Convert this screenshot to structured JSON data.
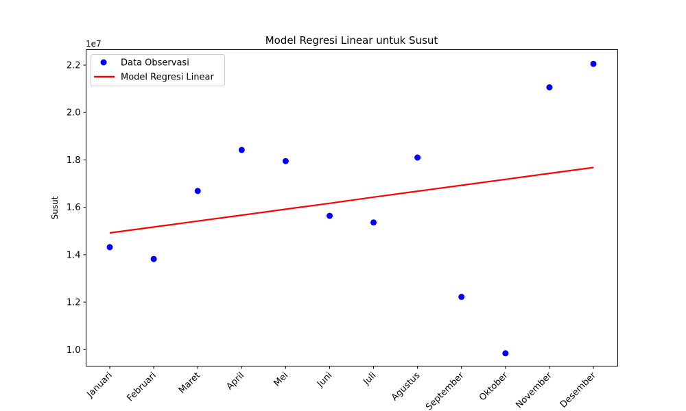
{
  "chart_data": {
    "type": "scatter",
    "title": "Model Regresi Linear untuk Susut",
    "xlabel": "",
    "ylabel": "Susut",
    "y_offset_label": "1e7",
    "categories": [
      "Januari",
      "Februari",
      "Maret",
      "April",
      "Mei",
      "Juni",
      "Juli",
      "Agustus",
      "September",
      "Oktober",
      "November",
      "Desember"
    ],
    "ylim": [
      9.3,
      22.65
    ],
    "yticks": [
      10,
      12,
      14,
      16,
      18,
      20,
      22
    ],
    "ytick_labels": [
      "1.0",
      "1.2",
      "1.4",
      "1.6",
      "1.8",
      "2.0",
      "2.2"
    ],
    "grid": false,
    "legend_position": "top-left",
    "series": [
      {
        "name": "Data Observasi",
        "kind": "scatter",
        "color": "#0000ff",
        "values": [
          14.32,
          13.82,
          16.69,
          18.42,
          17.95,
          15.64,
          15.36,
          18.1,
          12.22,
          9.84,
          21.06,
          22.05
        ]
      },
      {
        "name": "Model Regresi Linear",
        "kind": "line",
        "color": "#ff0000",
        "values": [
          14.92,
          15.17,
          15.42,
          15.67,
          15.92,
          16.17,
          16.43,
          16.68,
          16.93,
          17.18,
          17.43,
          17.68
        ]
      }
    ]
  }
}
